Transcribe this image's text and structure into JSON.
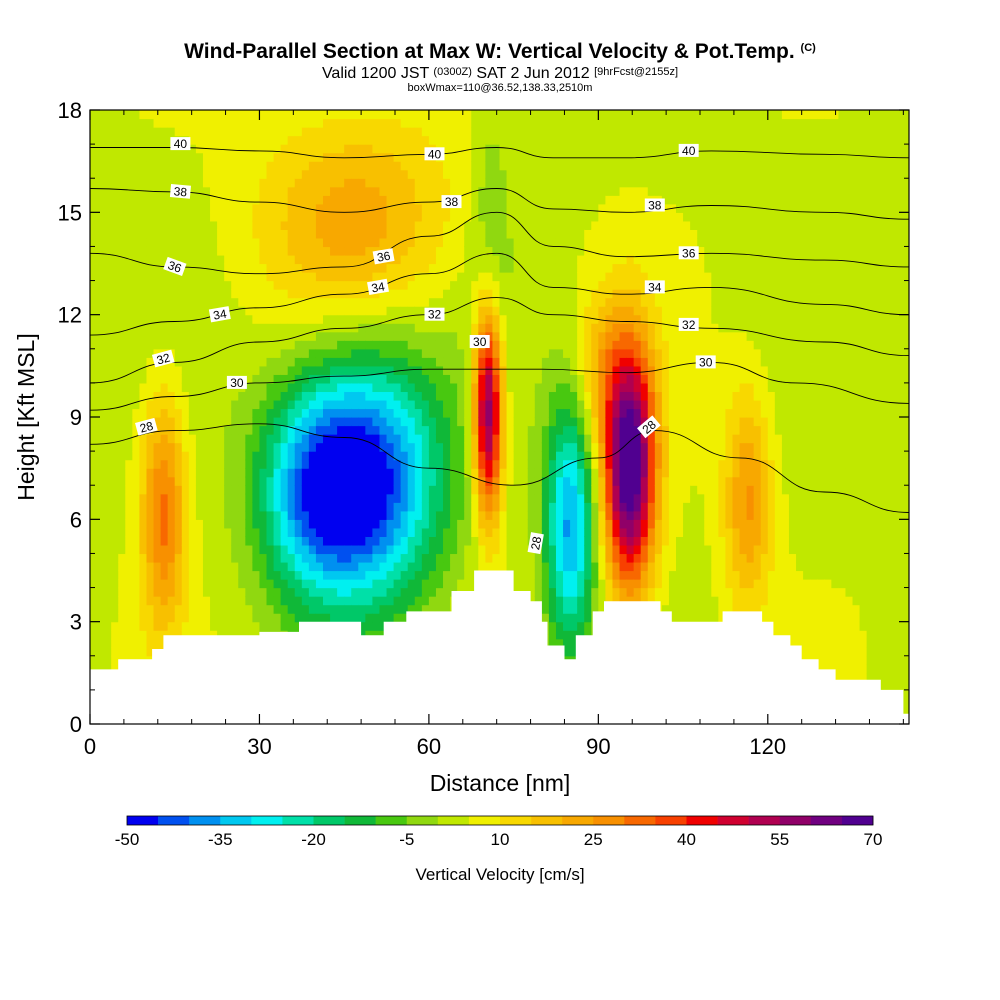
{
  "header": {
    "title": "Wind-Parallel Section at Max W: Vertical Velocity & Pot.Temp.",
    "title_mark": "(C)",
    "subtitle_main": "Valid 1200 JST",
    "subtitle_utc": "(0300Z)",
    "subtitle_date": "SAT 2 Jun 2012",
    "subtitle_fcst": "[9hrFcst@2155z]",
    "subsubtitle": "boxWmax=110@36.52,138.33,2510m"
  },
  "chart_data": {
    "type": "heatmap",
    "xlabel": "Distance [nm]",
    "ylabel": "Height [Kft MSL]",
    "xlim": [
      0,
      145
    ],
    "ylim": [
      0,
      18
    ],
    "x_ticks": [
      "0",
      "30",
      "60",
      "90",
      "120"
    ],
    "x_tick_values": [
      0,
      30,
      60,
      90,
      120
    ],
    "y_ticks": [
      "0",
      "3",
      "6",
      "9",
      "12",
      "15",
      "18"
    ],
    "y_tick_values": [
      0,
      3,
      6,
      9,
      12,
      15,
      18
    ],
    "colorbar": {
      "title": "Vertical Velocity [cm/s]",
      "min": -50,
      "max": 70,
      "step": 5,
      "labels": [
        "-50",
        "-35",
        "-20",
        "-5",
        "10",
        "25",
        "40",
        "55",
        "70"
      ],
      "label_values": [
        -50,
        -35,
        -20,
        -5,
        10,
        25,
        40,
        55,
        70
      ],
      "colors": [
        "#0000f0",
        "#0050f0",
        "#0090f0",
        "#00c8f0",
        "#00f0f0",
        "#00e0a8",
        "#00c868",
        "#10b838",
        "#48c810",
        "#90d810",
        "#c0e800",
        "#f0f000",
        "#f8d800",
        "#f8c000",
        "#f8a800",
        "#f89000",
        "#f86800",
        "#f84000",
        "#f00000",
        "#d00030",
        "#b00050",
        "#900068",
        "#700080",
        "#500090"
      ]
    },
    "terrain": [
      [
        0,
        1.6
      ],
      [
        5,
        1.9
      ],
      [
        11,
        2.2
      ],
      [
        13,
        2.6
      ],
      [
        30,
        2.7
      ],
      [
        37,
        3.0
      ],
      [
        48,
        2.6
      ],
      [
        52,
        3.0
      ],
      [
        56,
        3.3
      ],
      [
        64,
        3.9
      ],
      [
        68,
        4.5
      ],
      [
        73,
        4.5
      ],
      [
        75,
        3.9
      ],
      [
        78,
        3.6
      ],
      [
        80,
        3.0
      ],
      [
        81,
        2.3
      ],
      [
        84,
        1.9
      ],
      [
        86,
        2.6
      ],
      [
        89,
        3.3
      ],
      [
        91,
        3.6
      ],
      [
        99,
        3.6
      ],
      [
        101,
        3.3
      ],
      [
        103,
        3.0
      ],
      [
        110,
        3.0
      ],
      [
        112,
        3.3
      ],
      [
        116,
        3.3
      ],
      [
        119,
        3.0
      ],
      [
        121,
        2.6
      ],
      [
        124,
        2.3
      ],
      [
        126,
        1.9
      ],
      [
        129,
        1.6
      ],
      [
        132,
        1.3
      ],
      [
        140,
        1.0
      ],
      [
        144,
        0.3
      ],
      [
        145,
        0.3
      ]
    ],
    "features": [
      {
        "name": "downdraft-west",
        "x": 49.5,
        "y": 7.2,
        "sx": 9,
        "sy": 2.6,
        "w": -50
      },
      {
        "name": "downdraft-west-2",
        "x": 39,
        "y": 6.8,
        "sx": 7,
        "sy": 2.2,
        "w": -30
      },
      {
        "name": "downdraft-east",
        "x": 85,
        "y": 5.8,
        "sx": 3.2,
        "sy": 2.6,
        "w": -40
      },
      {
        "name": "updraft-central",
        "x": 70.5,
        "y": 9.2,
        "sx": 1.8,
        "sy": 2.2,
        "w": 60
      },
      {
        "name": "updraft-east",
        "x": 95.5,
        "y": 7.6,
        "sx": 3.2,
        "sy": 2.5,
        "w": 70
      },
      {
        "name": "updraft-west",
        "x": 13,
        "y": 6.3,
        "sx": 2.8,
        "sy": 2.4,
        "w": 28
      },
      {
        "name": "updraft-far-east",
        "x": 116.5,
        "y": 6.6,
        "sx": 3,
        "sy": 2.2,
        "w": 22
      },
      {
        "name": "upper-warm-west",
        "x": 47,
        "y": 14.8,
        "sx": 12,
        "sy": 2.2,
        "w": 18
      },
      {
        "name": "upper-cool-jet",
        "x": 71,
        "y": 14,
        "sx": 2.5,
        "sy": 3,
        "w": -10
      },
      {
        "name": "upper-warm-east",
        "x": 90,
        "y": 10.5,
        "sx": 3,
        "sy": 1.5,
        "w": 12
      }
    ],
    "isentropes": [
      {
        "level": 28,
        "label": "28",
        "points": [
          [
            0,
            8.2
          ],
          [
            15,
            8.6
          ],
          [
            30,
            8.8
          ],
          [
            45,
            8.4
          ],
          [
            60,
            7.5
          ],
          [
            75,
            7.0
          ],
          [
            90,
            7.8
          ],
          [
            100,
            8.6
          ],
          [
            115,
            7.8
          ],
          [
            130,
            6.8
          ],
          [
            145,
            6.2
          ]
        ]
      },
      {
        "level": 30,
        "label": "30",
        "points": [
          [
            0,
            9.2
          ],
          [
            15,
            9.6
          ],
          [
            30,
            10.0
          ],
          [
            45,
            10.2
          ],
          [
            60,
            10.4
          ],
          [
            70,
            10.4
          ],
          [
            80,
            10.4
          ],
          [
            95,
            10.3
          ],
          [
            110,
            10.6
          ],
          [
            125,
            10.0
          ],
          [
            145,
            9.4
          ]
        ]
      },
      {
        "level": 32,
        "label": "32",
        "points": [
          [
            0,
            10.0
          ],
          [
            15,
            10.6
          ],
          [
            30,
            11.2
          ],
          [
            45,
            11.6
          ],
          [
            60,
            12.0
          ],
          [
            72,
            12.5
          ],
          [
            82,
            12.0
          ],
          [
            95,
            11.8
          ],
          [
            110,
            11.6
          ],
          [
            130,
            11.2
          ],
          [
            145,
            10.8
          ]
        ]
      },
      {
        "level": 34,
        "label": "34",
        "points": [
          [
            0,
            11.4
          ],
          [
            15,
            11.8
          ],
          [
            30,
            12.2
          ],
          [
            45,
            12.6
          ],
          [
            60,
            13.2
          ],
          [
            72,
            13.8
          ],
          [
            82,
            12.8
          ],
          [
            95,
            12.6
          ],
          [
            110,
            12.8
          ],
          [
            130,
            12.3
          ],
          [
            145,
            12.0
          ]
        ]
      },
      {
        "level": 36,
        "label": "36",
        "points": [
          [
            0,
            13.8
          ],
          [
            15,
            13.4
          ],
          [
            30,
            13.2
          ],
          [
            45,
            13.4
          ],
          [
            60,
            14.3
          ],
          [
            72,
            15.0
          ],
          [
            82,
            14.0
          ],
          [
            95,
            13.7
          ],
          [
            110,
            13.8
          ],
          [
            130,
            13.6
          ],
          [
            145,
            13.4
          ]
        ]
      },
      {
        "level": 38,
        "label": "38",
        "points": [
          [
            0,
            15.7
          ],
          [
            15,
            15.6
          ],
          [
            30,
            15.3
          ],
          [
            45,
            15.0
          ],
          [
            60,
            15.3
          ],
          [
            72,
            15.7
          ],
          [
            82,
            15.1
          ],
          [
            95,
            15.0
          ],
          [
            110,
            15.2
          ],
          [
            130,
            15.0
          ],
          [
            145,
            14.8
          ]
        ]
      },
      {
        "level": 40,
        "label": "40",
        "points": [
          [
            0,
            16.9
          ],
          [
            15,
            16.9
          ],
          [
            30,
            16.8
          ],
          [
            45,
            16.6
          ],
          [
            60,
            16.7
          ],
          [
            72,
            16.9
          ],
          [
            82,
            16.6
          ],
          [
            95,
            16.6
          ],
          [
            110,
            16.8
          ],
          [
            130,
            16.7
          ],
          [
            145,
            16.6
          ]
        ]
      }
    ],
    "contour_labels": [
      {
        "text": "40",
        "x": 16,
        "y": 17.0,
        "angle": 0
      },
      {
        "text": "40",
        "x": 61,
        "y": 16.7,
        "angle": 0
      },
      {
        "text": "40",
        "x": 106,
        "y": 16.8,
        "angle": 0
      },
      {
        "text": "38",
        "x": 16,
        "y": 15.6,
        "angle": 5
      },
      {
        "text": "38",
        "x": 64,
        "y": 15.3,
        "angle": 0
      },
      {
        "text": "38",
        "x": 100,
        "y": 15.2,
        "angle": 0
      },
      {
        "text": "36",
        "x": 15,
        "y": 13.4,
        "angle": 20
      },
      {
        "text": "36",
        "x": 52,
        "y": 13.7,
        "angle": -10
      },
      {
        "text": "36",
        "x": 106,
        "y": 13.8,
        "angle": 0
      },
      {
        "text": "34",
        "x": 23,
        "y": 12.0,
        "angle": -10
      },
      {
        "text": "34",
        "x": 51,
        "y": 12.8,
        "angle": -10
      },
      {
        "text": "34",
        "x": 100,
        "y": 12.8,
        "angle": 0
      },
      {
        "text": "32",
        "x": 13,
        "y": 10.7,
        "angle": -15
      },
      {
        "text": "32",
        "x": 61,
        "y": 12.0,
        "angle": 0
      },
      {
        "text": "32",
        "x": 106,
        "y": 11.7,
        "angle": 0
      },
      {
        "text": "30",
        "x": 26,
        "y": 10.0,
        "angle": 0
      },
      {
        "text": "30",
        "x": 69,
        "y": 11.2,
        "angle": 0
      },
      {
        "text": "30",
        "x": 109,
        "y": 10.6,
        "angle": 0
      },
      {
        "text": "28",
        "x": 10,
        "y": 8.7,
        "angle": -15
      },
      {
        "text": "28",
        "x": 79,
        "y": 5.3,
        "angle": -80
      },
      {
        "text": "28",
        "x": 99,
        "y": 8.7,
        "angle": -40
      }
    ],
    "grid": false,
    "legend": "bottom"
  }
}
